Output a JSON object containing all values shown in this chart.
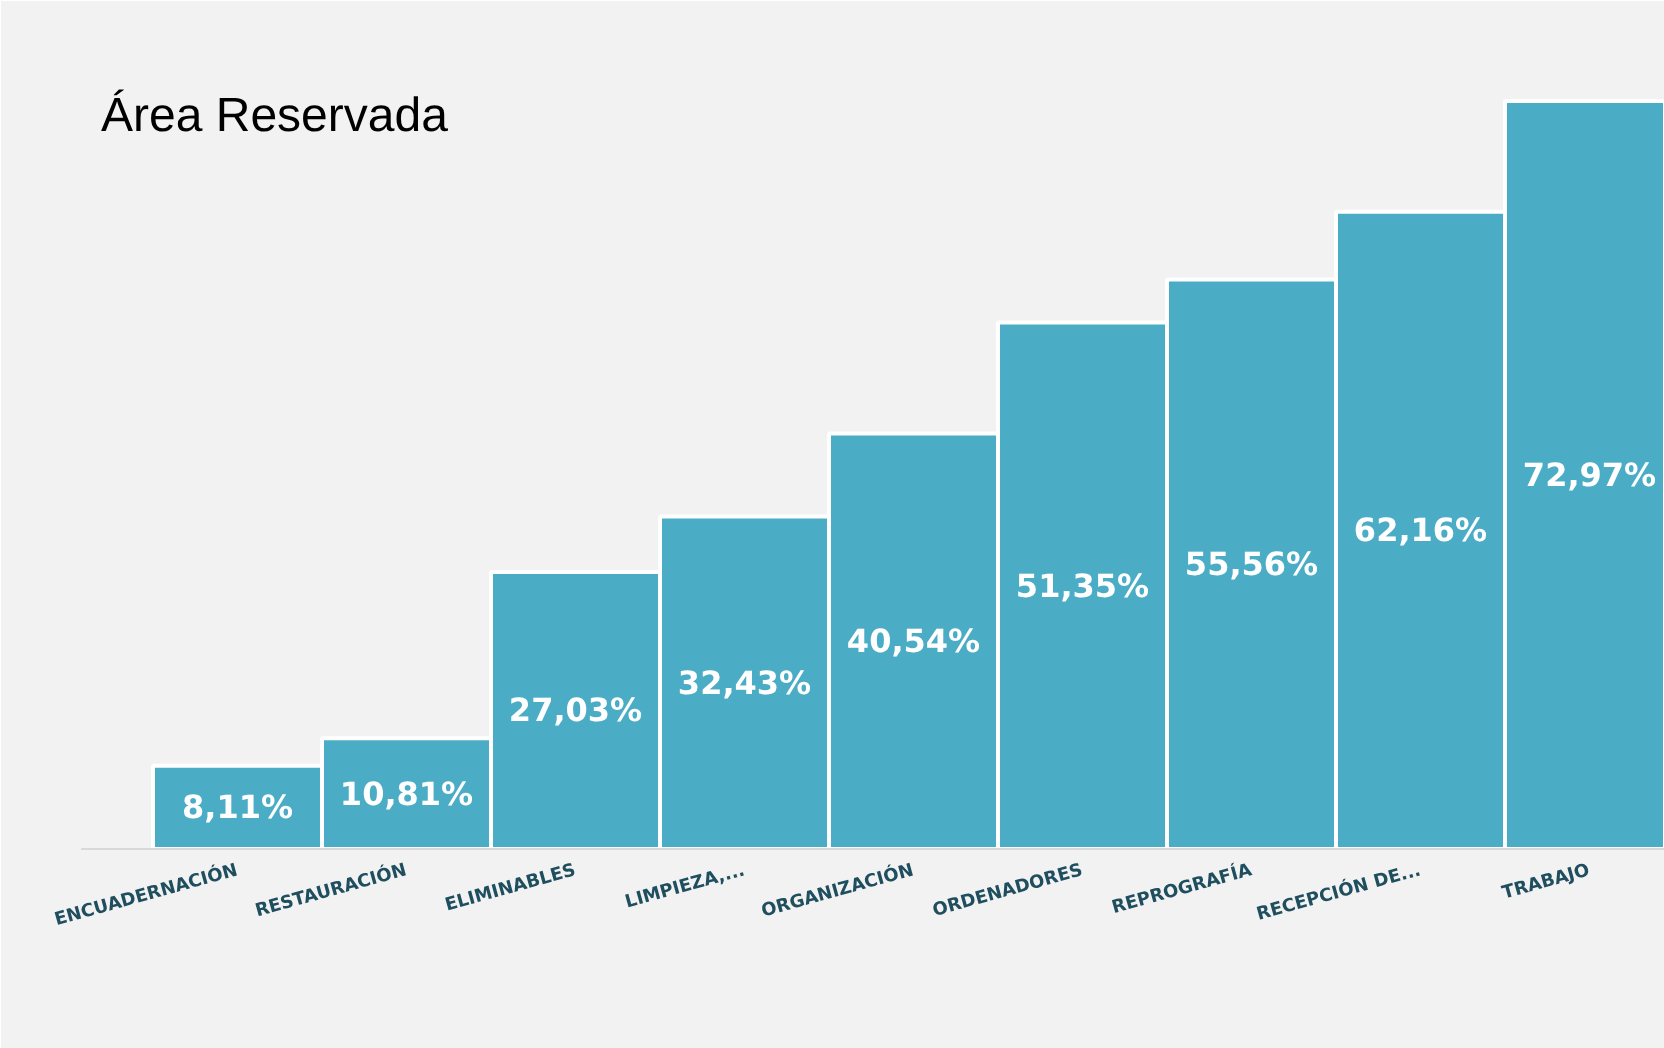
{
  "chart_data": {
    "type": "bar",
    "title": "Área Reservada",
    "categories": [
      "ENCUADERNACIÓN",
      "RESTAURACIÓN",
      "ELIMINABLES",
      "LIMPIEZA,...",
      "ORGANIZACIÓN",
      "ORDENADORES",
      "REPROGRAFÍA",
      "RECEPCIÓN DE...",
      "TRABAJO"
    ],
    "values": [
      8.11,
      10.81,
      27.03,
      32.43,
      40.54,
      51.35,
      55.56,
      62.16,
      72.97
    ],
    "color": "#4bacc6",
    "value_labels": [
      "8,11%",
      "10,81%",
      "27,03%",
      "32,43%",
      "40,54%",
      "51,35%",
      "55,56%",
      "62,16%",
      "72,97%"
    ]
  }
}
